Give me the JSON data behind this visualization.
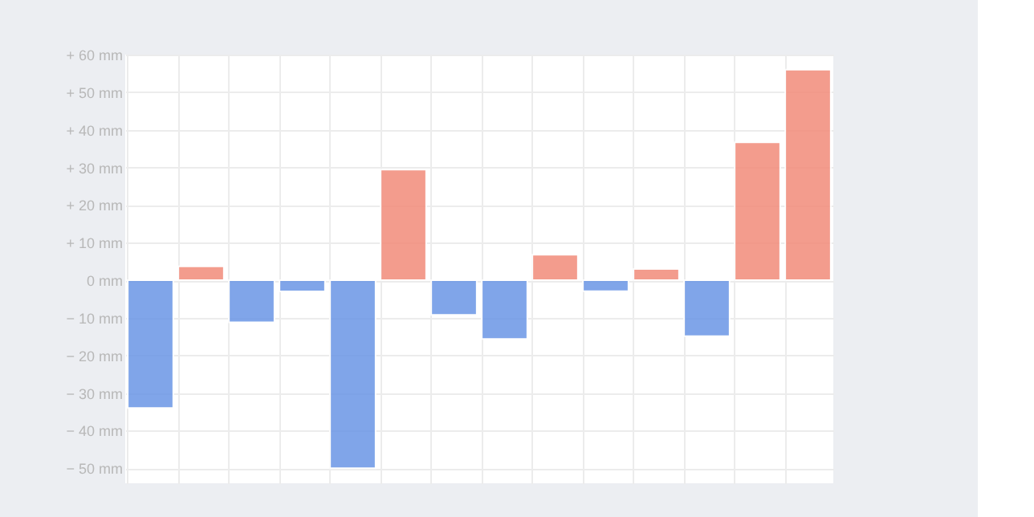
{
  "chart_data": {
    "type": "bar",
    "categories": [
      null,
      null,
      null,
      null,
      null,
      null,
      null,
      null,
      null,
      null,
      null,
      null,
      null,
      null
    ],
    "values": [
      -34,
      3.7,
      -11.2,
      -3,
      -50,
      29.4,
      -9.2,
      -15.6,
      6.8,
      -2.9,
      3,
      -14.9,
      36.7,
      56
    ],
    "colors": [
      "#6a96e6",
      "#f28b7a",
      "#6a96e6",
      "#6a96e6",
      "#6a96e6",
      "#f28b7a",
      "#6a96e6",
      "#6a96e6",
      "#f28b7a",
      "#6a96e6",
      "#f28b7a",
      "#6a96e6",
      "#f28b7a",
      "#f28b7a"
    ],
    "ylim": [
      -54,
      60
    ],
    "yticks": [
      {
        "value": -50,
        "label": "− 50 mm"
      },
      {
        "value": -40,
        "label": "− 40 mm"
      },
      {
        "value": -30,
        "label": "− 30 mm"
      },
      {
        "value": -20,
        "label": "− 20 mm"
      },
      {
        "value": -10,
        "label": "− 10 mm"
      },
      {
        "value": 0,
        "label": "0 mm"
      },
      {
        "value": 10,
        "label": "+ 10 mm"
      },
      {
        "value": 20,
        "label": "+ 20 mm"
      },
      {
        "value": 30,
        "label": "+ 30 mm"
      },
      {
        "value": 40,
        "label": "+ 40 mm"
      },
      {
        "value": 50,
        "label": "+ 50 mm"
      },
      {
        "value": 60,
        "label": "+ 60 mm"
      }
    ],
    "grid": true
  }
}
